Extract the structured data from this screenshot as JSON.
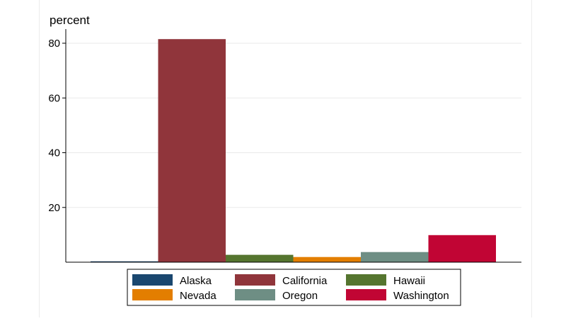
{
  "chart_data": {
    "type": "bar",
    "title": "",
    "xlabel": "",
    "ylabel": "percent",
    "ylim": [
      0,
      85
    ],
    "yticks": [
      20,
      40,
      60,
      80
    ],
    "grid": true,
    "legend_position": "bottom",
    "legend_columns": 3,
    "series": [
      {
        "name": "Alaska",
        "value": 0.3,
        "color": "#1a476f"
      },
      {
        "name": "California",
        "value": 81.5,
        "color": "#90353b"
      },
      {
        "name": "Hawaii",
        "value": 2.7,
        "color": "#55752f"
      },
      {
        "name": "Nevada",
        "value": 1.9,
        "color": "#e37e00"
      },
      {
        "name": "Oregon",
        "value": 3.7,
        "color": "#6e8e84"
      },
      {
        "name": "Washington",
        "value": 9.9,
        "color": "#c10534"
      }
    ]
  }
}
